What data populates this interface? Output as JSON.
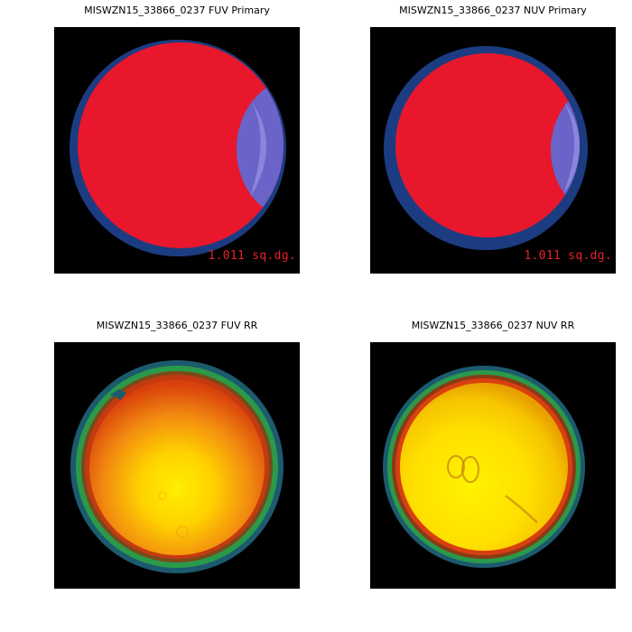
{
  "panels": [
    {
      "title": "MISWZN15_33866_0237 FUV Primary",
      "label": "1.011 sq.dg."
    },
    {
      "title": "MISWZN15_33866_0237 NUV Primary",
      "label": "1.011 sq.dg."
    },
    {
      "title": "MISWZN15_33866_0237 FUV RR"
    },
    {
      "title": "MISWZN15_33866_0237 NUV RR"
    }
  ],
  "colors": {
    "background": "#000000",
    "coverage_red": "#e8172b",
    "overlap_blue": "#6a64c8",
    "ring_blue": "#1c3c82",
    "rr_green": "#2a9a4a",
    "rr_yellow": "#ffe800",
    "rr_orange": "#e85010"
  }
}
